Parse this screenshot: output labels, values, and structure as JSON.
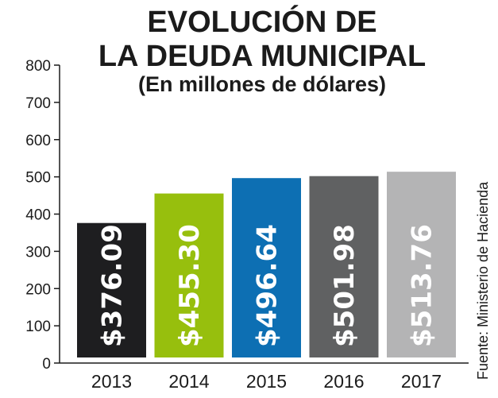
{
  "chart_data": {
    "type": "bar",
    "title": [
      "EVOLUCIÓN DE",
      "LA DEUDA MUNICIPAL"
    ],
    "subtitle": "(En millones de dólares)",
    "categories": [
      "2013",
      "2014",
      "2015",
      "2016",
      "2017"
    ],
    "values": [
      376.09,
      455.3,
      496.64,
      501.98,
      513.76
    ],
    "data_labels": [
      "$376.09",
      "$455.30",
      "$496.64",
      "$501.98",
      "$513.76"
    ],
    "bar_colors": [
      "#1e1e20",
      "#97bf0d",
      "#0d6fb3",
      "#606162",
      "#b4b4b5"
    ],
    "yticks": [
      0,
      100,
      200,
      300,
      400,
      500,
      600,
      700,
      800
    ],
    "ylim": [
      0,
      800
    ],
    "source": "Fuente: Ministerio de Hacienda",
    "grid": false,
    "legend": false
  }
}
